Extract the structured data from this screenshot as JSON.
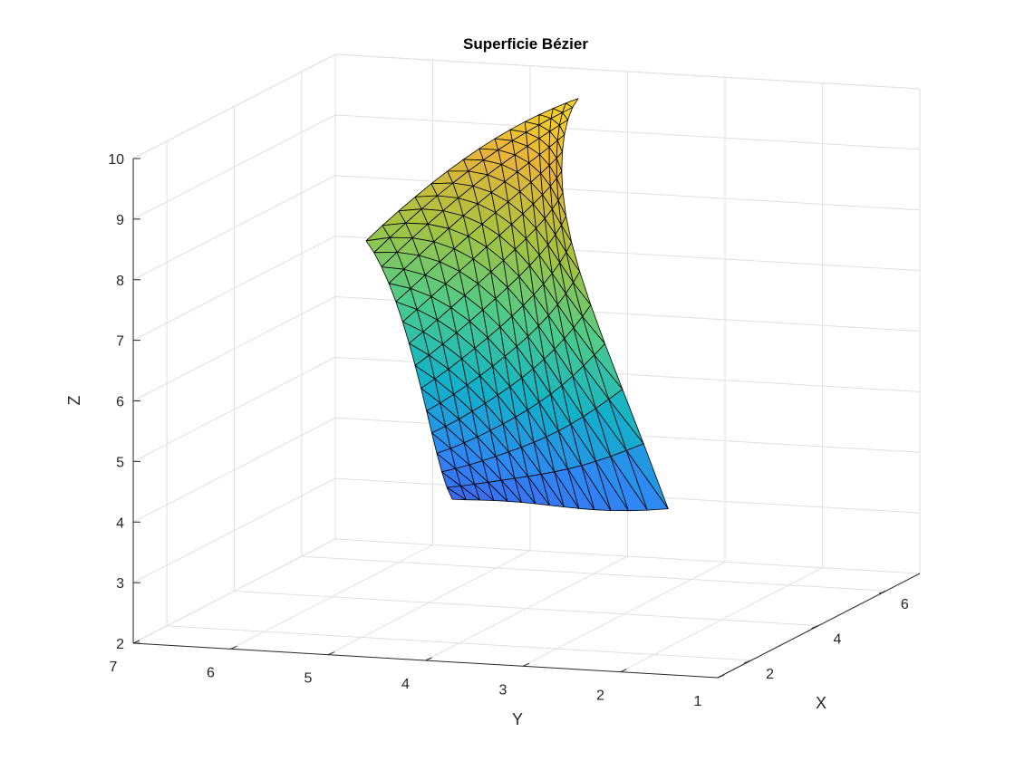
{
  "chart_data": {
    "type": "surface3d",
    "title": "Superficie Bézier",
    "xlabel": "X",
    "ylabel": "Y",
    "zlabel": "Z",
    "xlim": [
      1,
      7
    ],
    "ylim": [
      1,
      7
    ],
    "zlim": [
      2,
      10
    ],
    "x_ticks": [
      "2",
      "4",
      "6"
    ],
    "y_ticks": [
      "7",
      "6",
      "5",
      "4",
      "3",
      "2",
      "1"
    ],
    "z_ticks": [
      "2",
      "3",
      "4",
      "5",
      "6",
      "7",
      "8",
      "9",
      "10"
    ],
    "colormap": "parula",
    "colormap_stops": [
      "#3e26a8",
      "#4354ec",
      "#2f87f4",
      "#12b2c8",
      "#4ccb8c",
      "#a6c33f",
      "#e8b43a",
      "#f9e11f"
    ],
    "edge_color": "#000000",
    "grid": true,
    "surface": [
      [
        [
          3.0,
          2.2,
          4.1
        ],
        [
          3.4,
          3.1,
          7.2
        ],
        [
          4.0,
          3.7,
          8.1
        ],
        [
          4.8,
          4.0,
          8.9
        ],
        [
          5.6,
          4.2,
          9.6
        ],
        [
          6.4,
          4.3,
          9.7
        ]
      ],
      [
        [
          3.2,
          2.9,
          3.9
        ],
        [
          3.7,
          3.5,
          6.1
        ],
        [
          4.3,
          3.8,
          7.6
        ],
        [
          5.0,
          4.1,
          8.6
        ],
        [
          5.7,
          4.4,
          9.3
        ],
        [
          6.3,
          4.6,
          9.5
        ]
      ],
      [
        [
          3.5,
          3.4,
          3.8
        ],
        [
          3.9,
          3.8,
          5.2
        ],
        [
          4.5,
          4.1,
          6.9
        ],
        [
          5.1,
          4.4,
          8.1
        ],
        [
          5.7,
          4.7,
          8.9
        ],
        [
          6.2,
          5.0,
          9.2
        ]
      ],
      [
        [
          3.8,
          3.9,
          3.9
        ],
        [
          4.1,
          4.2,
          4.8
        ],
        [
          4.6,
          4.5,
          6.3
        ],
        [
          5.1,
          4.8,
          7.5
        ],
        [
          5.6,
          5.1,
          8.4
        ],
        [
          6.0,
          5.4,
          8.7
        ]
      ],
      [
        [
          4.1,
          4.4,
          3.7
        ],
        [
          4.3,
          4.6,
          4.3
        ],
        [
          4.7,
          4.9,
          5.6
        ],
        [
          5.1,
          5.2,
          6.8
        ],
        [
          5.5,
          5.5,
          7.7
        ],
        [
          5.8,
          5.8,
          8.1
        ]
      ],
      [
        [
          4.4,
          4.9,
          3.6
        ],
        [
          4.5,
          5.1,
          4.0
        ],
        [
          4.8,
          5.3,
          5.1
        ],
        [
          5.1,
          5.6,
          6.2
        ],
        [
          5.4,
          5.9,
          7.0
        ],
        [
          5.6,
          6.2,
          7.4
        ]
      ]
    ]
  }
}
